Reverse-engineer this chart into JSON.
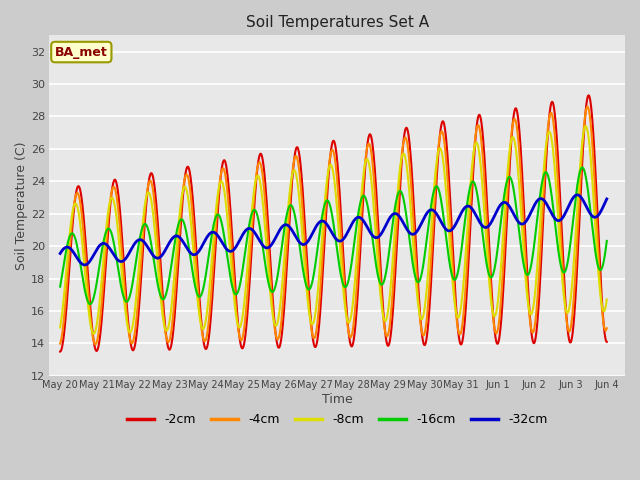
{
  "title": "Soil Temperatures Set A",
  "xlabel": "Time",
  "ylabel": "Soil Temperature (C)",
  "ylim": [
    12,
    33
  ],
  "yticks": [
    12,
    14,
    16,
    18,
    20,
    22,
    24,
    26,
    28,
    30,
    32
  ],
  "annotation": "BA_met",
  "legend_labels": [
    "-2cm",
    "-4cm",
    "-8cm",
    "-16cm",
    "-32cm"
  ],
  "colors": [
    "#dd0000",
    "#ff8800",
    "#dddd00",
    "#00cc00",
    "#0000cc"
  ],
  "line_widths": [
    1.5,
    1.5,
    1.5,
    1.5,
    2.0
  ],
  "bg_color": "#e8e8e8",
  "figsize": [
    6.4,
    4.8
  ],
  "dpi": 100
}
